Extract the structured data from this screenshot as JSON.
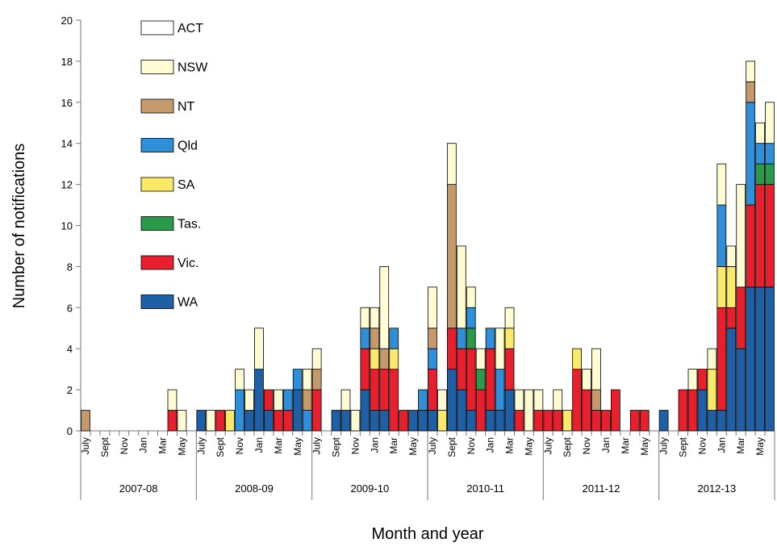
{
  "chart_data": {
    "type": "stacked-bar",
    "x_label": "Month and year",
    "y_label": "Number of notifications",
    "categories": [
      "July",
      null,
      "Sept",
      null,
      "Nov",
      null,
      "Jan",
      null,
      "Mar",
      null,
      "May",
      null,
      "July",
      null,
      "Sept",
      null,
      "Nov",
      null,
      "Jan",
      null,
      "Mar",
      null,
      "May",
      null,
      "July",
      null,
      "Sept",
      null,
      "Nov",
      null,
      "Jan",
      null,
      "Mar",
      null,
      "May",
      null,
      "July",
      null,
      "Sept",
      null,
      "Nov",
      null,
      "Jan",
      null,
      "Mar",
      null,
      "May",
      null,
      "July",
      null,
      "Sept",
      null,
      "Nov",
      null,
      "Jan",
      null,
      "Mar",
      null,
      "May",
      null,
      "July",
      null,
      "Sept",
      null,
      "Nov",
      null,
      "Jan",
      null,
      "Mar",
      null,
      "May",
      null
    ],
    "groups": [
      "2007-08",
      "2008-09",
      "2009-10",
      "2010-11",
      "2011-12",
      "2012-13"
    ],
    "ylim": [
      0,
      20
    ],
    "yticks": [
      0,
      2,
      4,
      6,
      8,
      10,
      12,
      14,
      16,
      18,
      20
    ],
    "series": [
      {
        "name": "WA",
        "color": "#1f5fa6",
        "values": [
          0,
          0,
          0,
          0,
          0,
          0,
          0,
          0,
          0,
          0,
          0,
          0,
          1,
          0,
          0,
          0,
          0,
          1,
          3,
          1,
          0,
          0,
          2,
          0,
          0,
          0,
          1,
          1,
          0,
          2,
          1,
          1,
          0,
          0,
          1,
          1,
          1,
          0,
          3,
          2,
          1,
          0,
          1,
          1,
          2,
          0,
          0,
          0,
          0,
          0,
          0,
          0,
          0,
          0,
          0,
          0,
          0,
          0,
          0,
          0,
          1,
          0,
          0,
          0,
          2,
          1,
          1,
          5,
          4,
          7,
          7,
          7
        ]
      },
      {
        "name": "Vic.",
        "color": "#e8202e",
        "values": [
          0,
          0,
          0,
          0,
          0,
          0,
          0,
          0,
          0,
          1,
          0,
          0,
          0,
          0,
          1,
          0,
          0,
          0,
          0,
          1,
          1,
          1,
          0,
          0,
          2,
          0,
          0,
          0,
          0,
          2,
          2,
          2,
          3,
          1,
          0,
          0,
          2,
          0,
          2,
          2,
          3,
          2,
          3,
          0,
          2,
          1,
          0,
          1,
          1,
          1,
          0,
          3,
          2,
          1,
          1,
          2,
          0,
          1,
          1,
          0,
          0,
          0,
          2,
          2,
          1,
          0,
          5,
          1,
          3,
          4,
          5,
          5
        ]
      },
      {
        "name": "Tas.",
        "color": "#2a9a4a",
        "values": [
          0,
          0,
          0,
          0,
          0,
          0,
          0,
          0,
          0,
          0,
          0,
          0,
          0,
          0,
          0,
          0,
          0,
          0,
          0,
          0,
          0,
          0,
          0,
          0,
          0,
          0,
          0,
          0,
          0,
          0,
          0,
          0,
          0,
          0,
          0,
          0,
          0,
          0,
          0,
          0,
          1,
          1,
          0,
          0,
          0,
          0,
          0,
          0,
          0,
          0,
          0,
          0,
          0,
          0,
          0,
          0,
          0,
          0,
          0,
          0,
          0,
          0,
          0,
          0,
          0,
          0,
          0,
          0,
          0,
          0,
          1,
          1
        ]
      },
      {
        "name": "SA",
        "color": "#fbe96a",
        "values": [
          0,
          0,
          0,
          0,
          0,
          0,
          0,
          0,
          0,
          0,
          0,
          0,
          0,
          0,
          0,
          1,
          0,
          0,
          0,
          0,
          0,
          0,
          0,
          0,
          0,
          0,
          0,
          0,
          0,
          0,
          1,
          0,
          1,
          0,
          0,
          0,
          0,
          1,
          0,
          0,
          0,
          0,
          0,
          0,
          1,
          0,
          0,
          0,
          0,
          0,
          1,
          1,
          0,
          0,
          0,
          0,
          0,
          0,
          0,
          0,
          0,
          0,
          0,
          0,
          0,
          2,
          2,
          2,
          0,
          0,
          0,
          0
        ]
      },
      {
        "name": "Qld",
        "color": "#2f8fd8",
        "values": [
          0,
          0,
          0,
          0,
          0,
          0,
          0,
          0,
          0,
          0,
          0,
          0,
          0,
          0,
          0,
          0,
          2,
          0,
          0,
          0,
          0,
          1,
          1,
          1,
          0,
          0,
          0,
          0,
          0,
          1,
          0,
          0,
          1,
          0,
          0,
          1,
          1,
          0,
          0,
          1,
          1,
          0,
          1,
          2,
          0,
          0,
          0,
          0,
          0,
          0,
          0,
          0,
          0,
          0,
          0,
          0,
          0,
          0,
          0,
          0,
          0,
          0,
          0,
          0,
          0,
          0,
          3,
          0,
          0,
          5,
          1,
          1
        ]
      },
      {
        "name": "NT",
        "color": "#c49a6c",
        "values": [
          1,
          0,
          0,
          0,
          0,
          0,
          0,
          0,
          0,
          0,
          0,
          0,
          0,
          0,
          0,
          0,
          0,
          0,
          0,
          0,
          0,
          0,
          0,
          1,
          1,
          0,
          0,
          0,
          0,
          0,
          1,
          1,
          0,
          0,
          0,
          0,
          1,
          0,
          7,
          0,
          0,
          0,
          0,
          0,
          0,
          0,
          0,
          0,
          0,
          0,
          0,
          0,
          0,
          1,
          0,
          0,
          0,
          0,
          0,
          0,
          0,
          0,
          0,
          0,
          0,
          0,
          0,
          0,
          0,
          1,
          0,
          0
        ]
      },
      {
        "name": "NSW",
        "color": "#fffbd2",
        "values": [
          0,
          0,
          0,
          0,
          0,
          0,
          0,
          0,
          0,
          1,
          1,
          0,
          0,
          1,
          0,
          0,
          1,
          1,
          2,
          0,
          1,
          0,
          0,
          1,
          1,
          0,
          0,
          1,
          1,
          1,
          1,
          4,
          0,
          0,
          0,
          0,
          2,
          1,
          2,
          4,
          1,
          1,
          0,
          2,
          1,
          1,
          2,
          1,
          0,
          1,
          0,
          0,
          1,
          2,
          0,
          0,
          0,
          0,
          0,
          0,
          0,
          0,
          0,
          1,
          0,
          1,
          2,
          1,
          5,
          1,
          1,
          2
        ]
      },
      {
        "name": "ACT",
        "color": "#ffffff",
        "values": [
          0,
          0,
          0,
          0,
          0,
          0,
          0,
          0,
          0,
          0,
          0,
          0,
          0,
          0,
          0,
          0,
          0,
          0,
          0,
          0,
          0,
          0,
          0,
          0,
          0,
          0,
          0,
          0,
          0,
          0,
          0,
          0,
          0,
          0,
          0,
          0,
          0,
          0,
          0,
          0,
          0,
          0,
          0,
          0,
          0,
          0,
          0,
          0,
          0,
          0,
          0,
          0,
          0,
          0,
          0,
          0,
          0,
          0,
          0,
          0,
          0,
          0,
          0,
          0,
          0,
          0,
          0,
          0,
          0,
          0,
          0,
          0
        ]
      }
    ]
  }
}
